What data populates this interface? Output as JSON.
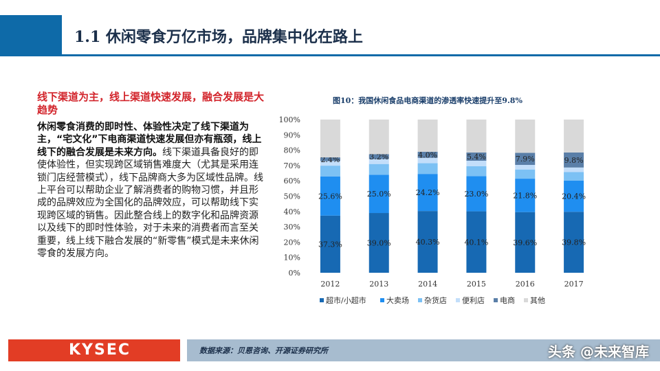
{
  "header": {
    "title": "1.1 休闲零食万亿市场，品牌集中化在路上"
  },
  "left": {
    "highlight": "线下渠道为主，线上渠道快速发展，融合发展是大趋势",
    "bold_text": "休闲零食消费的即时性、体验性决定了线下渠道为主，“宅文化”下电商渠道快速发展但亦有瓶颈，线上线下的融合发展是未来方向。",
    "body_text": "线下渠道具备良好的即使体验性，但实现跨区域销售难度大（尤其是采用连锁门店经营模式），线下品牌商大多为区域性品牌。线上平台可以帮助企业了解消费者的购物习惯，并且形成的品牌效应为全国化的品牌效应，可以帮助线下实现跨区域的销售。因此整合线上的数字化和品牌资源以及线下的即时性体验，对于未来的消费者而言至关重要，线上线下融合发展的“新零售”模式是未来休闲零食的发展方向。"
  },
  "chart_title": "图10：我国休闲食品电商渠道的渗透率快速提升至9.8%",
  "chart_data": {
    "type": "bar",
    "stacked": true,
    "percent": true,
    "categories": [
      "2012",
      "2013",
      "2014",
      "2015",
      "2016",
      "2017"
    ],
    "ylim": [
      0,
      100
    ],
    "yticks": [
      "0%",
      "10%",
      "20%",
      "30%",
      "40%",
      "50%",
      "60%",
      "70%",
      "80%",
      "90%",
      "100%"
    ],
    "series": [
      {
        "name": "超市/小超市",
        "color": "#1769b3",
        "values": [
          37.3,
          39.0,
          40.3,
          40.1,
          39.6,
          39.8
        ],
        "labels": [
          "37.3%",
          "39.0%",
          "40.3%",
          "40.1%",
          "39.6%",
          "39.8%"
        ]
      },
      {
        "name": "大卖场",
        "color": "#1f8ef0",
        "values": [
          25.6,
          25.0,
          24.2,
          23.0,
          21.8,
          20.4
        ],
        "labels": [
          "25.6%",
          "25.0%",
          "24.2%",
          "23.0%",
          "21.8%",
          "20.4%"
        ]
      },
      {
        "name": "杂货店",
        "color": "#7cc1f4",
        "values": [
          7.0,
          7.0,
          7.0,
          6.5,
          6.0,
          5.5
        ],
        "labels": [
          "",
          "",
          "",
          "",
          "",
          ""
        ]
      },
      {
        "name": "便利店",
        "color": "#c3defa",
        "values": [
          3.0,
          3.2,
          3.5,
          3.5,
          3.0,
          3.0
        ],
        "labels": [
          "",
          "",
          "",
          "",
          "",
          ""
        ]
      },
      {
        "name": "电商",
        "color": "#5a7fa8",
        "values": [
          2.4,
          3.2,
          4.0,
          5.4,
          7.9,
          9.8
        ],
        "labels": [
          "2.4%",
          "3.2%",
          "4.0%",
          "5.4%",
          "7.9%",
          "9.8%"
        ]
      },
      {
        "name": "其他",
        "color": "#d9d9d9",
        "values": [
          24.7,
          22.6,
          21.0,
          21.5,
          21.7,
          21.5
        ],
        "labels": [
          "",
          "",
          "",
          "",
          "",
          ""
        ]
      }
    ]
  },
  "footer": {
    "logo": "KYSEC",
    "source": "数据来源：贝恩咨询、开源证券研究所",
    "watermark": "头条 @未来智库"
  }
}
